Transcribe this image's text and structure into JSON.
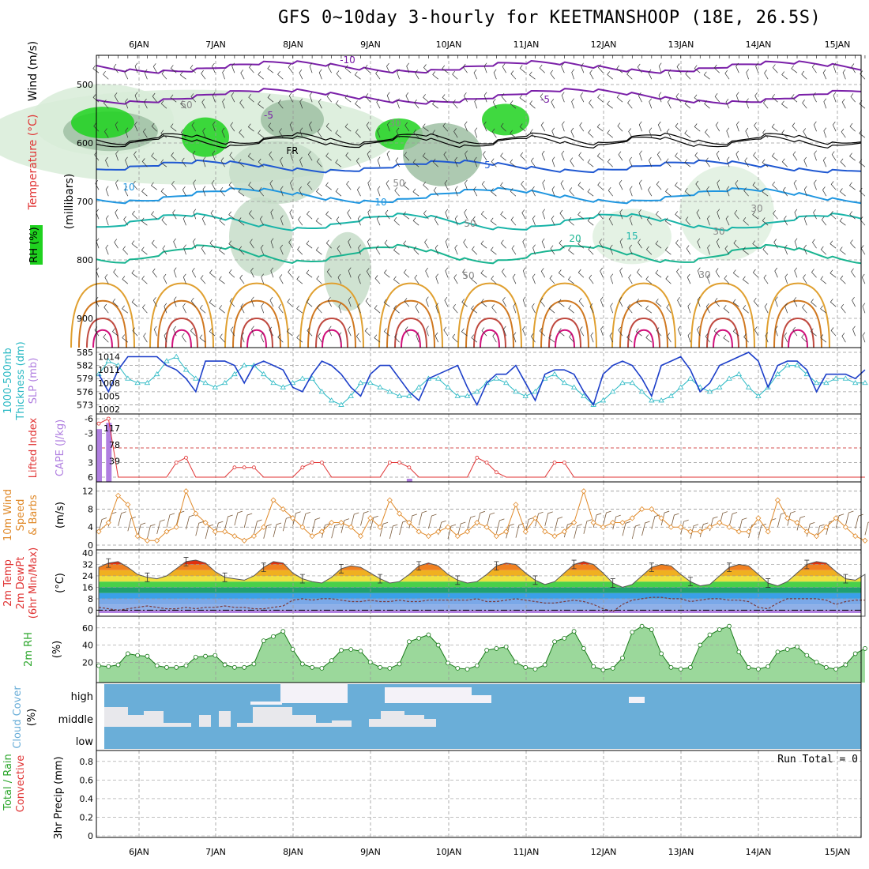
{
  "title": "GFS 0~10day 3-hourly for KEETMANSHOOP (18E, 26.5S)",
  "dates": [
    "6JAN",
    "7JAN",
    "8JAN",
    "9JAN",
    "10JAN",
    "11JAN",
    "12JAN",
    "13JAN",
    "14JAN",
    "15JAN"
  ],
  "colors": {
    "rh": "#1fd21f",
    "rh_dark": "#8fa894",
    "temp_cold": "#7a1fa8",
    "temp_mid": "#1f58d2",
    "temp_warm": "#18b4a8",
    "temp_hot": "#e09020",
    "slp": "#1d3fc9",
    "thick": "#2bb9c4",
    "li": "#e03333",
    "cape": "#b07fe0",
    "wind": "#e08a2a",
    "rh2m": "#2aa52a",
    "cloud": "#6aaed8"
  },
  "panels": {
    "upper": {
      "ylabels": [
        "Wind (m/s)",
        "Temperature (°C)",
        "RH (%)",
        "(millibars)"
      ],
      "yticks": [
        "500",
        "600",
        "700",
        "800",
        "900"
      ],
      "contour_labels": [
        "-10",
        "-5",
        "-5",
        "FR",
        "5",
        "10",
        "10",
        "15",
        "20",
        "50",
        "50",
        "50",
        "30",
        "30",
        "30",
        "50",
        "30"
      ]
    },
    "slp": {
      "ylabels": [
        "1000-500mb",
        "Thickness (dm)",
        "SLP (mb)"
      ],
      "yticks_left": [
        "585",
        "582",
        "579",
        "576",
        "573"
      ],
      "yticks_right": [
        "1014",
        "1011",
        "1008",
        "1005",
        "1002"
      ]
    },
    "li": {
      "ylabels": [
        "Lifted Index",
        "CAPE (J/kg)"
      ],
      "yticks_left": [
        "-6",
        "-3",
        "0",
        "3",
        "6"
      ],
      "yticks_right": [
        "117",
        "78",
        "39"
      ]
    },
    "wind": {
      "ylabels": [
        "10m Wind",
        "Speed",
        "& Barbs"
      ],
      "unit": "(m/s)",
      "yticks": [
        "12",
        "8",
        "4",
        "0"
      ]
    },
    "temp": {
      "ylabels": [
        "2m Temp",
        "2m DewPt",
        "(6hr Min/Max)"
      ],
      "unit": "(°C)",
      "yticks": [
        "40",
        "32",
        "24",
        "16",
        "8",
        "0"
      ]
    },
    "rh": {
      "ylabels": [
        "2m RH"
      ],
      "unit": "(%)",
      "yticks": [
        "60",
        "40",
        "20"
      ]
    },
    "cloud": {
      "ylabels": [
        "Cloud Cover"
      ],
      "unit": "(%)",
      "levels": [
        "high",
        "middle",
        "low"
      ]
    },
    "precip": {
      "ylabels": [
        "Total / Rain",
        "Convective"
      ],
      "ylabel2": "3hr Precip (mm)",
      "yticks": [
        "0.8",
        "0.6",
        "0.4",
        "0.2",
        "0"
      ],
      "run_total": "Run Total = 0"
    }
  },
  "chart_data": [
    {
      "type": "line",
      "name": "SLP",
      "ylabel": "SLP (mb)",
      "ylim": [
        1002,
        1015
      ],
      "x": [
        0,
        1,
        2,
        3,
        4,
        5,
        6,
        7,
        8,
        9,
        10,
        11,
        12,
        13,
        14,
        15,
        16,
        17,
        18,
        19,
        20,
        21,
        22,
        23,
        24,
        25,
        26,
        27,
        28,
        29,
        30,
        31,
        32,
        33,
        34,
        35,
        36,
        37,
        38,
        39,
        40,
        41,
        42,
        43,
        44,
        45,
        46,
        47,
        48,
        49,
        50,
        51,
        52,
        53,
        54,
        55,
        56,
        57,
        58,
        59,
        60,
        61,
        62,
        63,
        64,
        65,
        66,
        67,
        68,
        69,
        70,
        71,
        72,
        73,
        74,
        75,
        76,
        77,
        78,
        79
      ],
      "values": [
        1010,
        1006,
        1011,
        1014,
        1014,
        1014,
        1014,
        1012,
        1011,
        1009,
        1006,
        1013,
        1013,
        1013,
        1012,
        1008,
        1012,
        1013,
        1012,
        1011,
        1007,
        1006,
        1010,
        1013,
        1012,
        1010,
        1007,
        1005,
        1010,
        1012,
        1012,
        1009,
        1006,
        1004,
        1009,
        1010,
        1011,
        1012,
        1007,
        1003,
        1008,
        1010,
        1010,
        1012,
        1008,
        1004,
        1010,
        1011,
        1011,
        1010,
        1006,
        1003,
        1010,
        1012,
        1013,
        1012,
        1009,
        1005,
        1012,
        1013,
        1014,
        1011,
        1006,
        1008,
        1012,
        1013,
        1014,
        1015,
        1013,
        1007,
        1012,
        1013,
        1013,
        1011,
        1006,
        1010,
        1010,
        1010,
        1009,
        1011
      ]
    },
    {
      "type": "line",
      "name": "Thickness",
      "ylabel": "Thickness (dm)",
      "ylim": [
        572,
        585
      ],
      "x": [
        0,
        1,
        2,
        3,
        4,
        5,
        6,
        7,
        8,
        9,
        10,
        11,
        12,
        13,
        14,
        15,
        16,
        17,
        18,
        19,
        20,
        21,
        22,
        23,
        24,
        25,
        26,
        27,
        28,
        29,
        30,
        31,
        32,
        33,
        34,
        35,
        36,
        37,
        38,
        39,
        40,
        41,
        42,
        43,
        44,
        45,
        46,
        47,
        48,
        49,
        50,
        51,
        52,
        53,
        54,
        55,
        56,
        57,
        58,
        59,
        60,
        61,
        62,
        63,
        64,
        65,
        66,
        67,
        68,
        69,
        70,
        71,
        72,
        73,
        74,
        75,
        76,
        77,
        78,
        79
      ],
      "values": [
        580,
        583,
        582,
        579,
        578,
        578,
        580,
        583,
        584,
        581,
        579,
        578,
        577,
        578,
        580,
        582,
        582,
        580,
        578,
        577,
        578,
        579,
        579,
        576,
        574,
        573,
        575,
        578,
        578,
        577,
        576,
        575,
        575,
        577,
        579,
        579,
        577,
        575,
        575,
        576,
        578,
        579,
        578,
        576,
        575,
        576,
        579,
        580,
        578,
        577,
        575,
        573,
        574,
        576,
        578,
        578,
        576,
        574,
        574,
        575,
        577,
        579,
        577,
        576,
        577,
        579,
        580,
        577,
        575,
        577,
        580,
        582,
        582,
        580,
        578,
        578,
        579,
        579,
        578,
        578
      ]
    },
    {
      "type": "line",
      "name": "10m Wind Speed",
      "ylabel": "(m/s)",
      "ylim": [
        0,
        13
      ],
      "x": [
        0,
        1,
        2,
        3,
        4,
        5,
        6,
        7,
        8,
        9,
        10,
        11,
        12,
        13,
        14,
        15,
        16,
        17,
        18,
        19,
        20,
        21,
        22,
        23,
        24,
        25,
        26,
        27,
        28,
        29,
        30,
        31,
        32,
        33,
        34,
        35,
        36,
        37,
        38,
        39,
        40,
        41,
        42,
        43,
        44,
        45,
        46,
        47,
        48,
        49,
        50,
        51,
        52,
        53,
        54,
        55,
        56,
        57,
        58,
        59,
        60,
        61,
        62,
        63,
        64,
        65,
        66,
        67,
        68,
        69,
        70,
        71,
        72,
        73,
        74,
        75,
        76,
        77,
        78,
        79
      ],
      "values": [
        3,
        5,
        11,
        9,
        2,
        1,
        1,
        3,
        4,
        12,
        7,
        5,
        3,
        3,
        2,
        1,
        2,
        4,
        10,
        8,
        6,
        4,
        2,
        3,
        5,
        5,
        4,
        2,
        6,
        4,
        10,
        7,
        5,
        3,
        2,
        3,
        4,
        2,
        3,
        5,
        4,
        2,
        3,
        9,
        3,
        6,
        3,
        2,
        3,
        5,
        12,
        5,
        4,
        5,
        5,
        6,
        8,
        8,
        6,
        4,
        4,
        3,
        3,
        4,
        5,
        4,
        3,
        3,
        6,
        3,
        10,
        6,
        5,
        3,
        2,
        4,
        6,
        4,
        2,
        1
      ]
    },
    {
      "type": "area",
      "name": "2m Temp",
      "ylabel": "(°C)",
      "ylim": [
        0,
        40
      ],
      "x": [
        0,
        1,
        2,
        3,
        4,
        5,
        6,
        7,
        8,
        9,
        10,
        11,
        12,
        13,
        14,
        15,
        16,
        17,
        18,
        19,
        20,
        21,
        22,
        23,
        24,
        25,
        26,
        27,
        28,
        29,
        30,
        31,
        32,
        33,
        34,
        35,
        36,
        37,
        38,
        39,
        40,
        41,
        42,
        43,
        44,
        45,
        46,
        47,
        48,
        49,
        50,
        51,
        52,
        53,
        54,
        55,
        56,
        57,
        58,
        59,
        60,
        61,
        62,
        63,
        64,
        65,
        66,
        67,
        68,
        69,
        70,
        71,
        72,
        73,
        74,
        75,
        76,
        77,
        78,
        79
      ],
      "values": [
        30,
        33,
        34,
        30,
        25,
        23,
        22,
        24,
        29,
        34,
        35,
        33,
        27,
        23,
        22,
        21,
        24,
        30,
        34,
        33,
        26,
        22,
        20,
        19,
        23,
        29,
        31,
        30,
        26,
        22,
        19,
        20,
        25,
        31,
        33,
        31,
        25,
        21,
        19,
        20,
        25,
        31,
        33,
        32,
        26,
        21,
        18,
        20,
        26,
        32,
        34,
        32,
        26,
        19,
        16,
        18,
        24,
        30,
        32,
        31,
        25,
        20,
        17,
        18,
        24,
        30,
        32,
        31,
        25,
        19,
        17,
        20,
        26,
        32,
        34,
        33,
        27,
        22,
        21,
        25
      ]
    },
    {
      "type": "line",
      "name": "2m DewPt",
      "ylabel": "(°C)",
      "ylim": [
        -2,
        40
      ],
      "x": [
        0,
        1,
        2,
        3,
        4,
        5,
        6,
        7,
        8,
        9,
        10,
        11,
        12,
        13,
        14,
        15,
        16,
        17,
        18,
        19,
        20,
        21,
        22,
        23,
        24,
        25,
        26,
        27,
        28,
        29,
        30,
        31,
        32,
        33,
        34,
        35,
        36,
        37,
        38,
        39,
        40,
        41,
        42,
        43,
        44,
        45,
        46,
        47,
        48,
        49,
        50,
        51,
        52,
        53,
        54,
        55,
        56,
        57,
        58,
        59,
        60,
        61,
        62,
        63,
        64,
        65,
        66,
        67,
        68,
        69,
        70,
        71,
        72,
        73,
        74,
        75,
        76,
        77,
        78,
        79
      ],
      "values": [
        2,
        1,
        0,
        1,
        2,
        3,
        2,
        1,
        1,
        2,
        1,
        2,
        2,
        3,
        2,
        2,
        1,
        1,
        2,
        3,
        7,
        8,
        7,
        8,
        8,
        7,
        6,
        6,
        7,
        6,
        6,
        7,
        6,
        6,
        7,
        7,
        7,
        7,
        7,
        8,
        6,
        6,
        7,
        8,
        7,
        6,
        5,
        5,
        6,
        7,
        6,
        4,
        1,
        -1,
        4,
        7,
        8,
        9,
        9,
        8,
        8,
        6,
        7,
        8,
        8,
        7,
        7,
        6,
        2,
        1,
        5,
        8,
        8,
        8,
        8,
        7,
        4,
        6,
        7,
        7
      ]
    },
    {
      "type": "area",
      "name": "2m RH",
      "ylabel": "(%)",
      "ylim": [
        0,
        70
      ],
      "x": [
        0,
        1,
        2,
        3,
        4,
        5,
        6,
        7,
        8,
        9,
        10,
        11,
        12,
        13,
        14,
        15,
        16,
        17,
        18,
        19,
        20,
        21,
        22,
        23,
        24,
        25,
        26,
        27,
        28,
        29,
        30,
        31,
        32,
        33,
        34,
        35,
        36,
        37,
        38,
        39,
        40,
        41,
        42,
        43,
        44,
        45,
        46,
        47,
        48,
        49,
        50,
        51,
        52,
        53,
        54,
        55,
        56,
        57,
        58,
        59,
        60,
        61,
        62,
        63,
        64,
        65,
        66,
        67,
        68,
        69,
        70,
        71,
        72,
        73,
        74,
        75,
        76,
        77,
        78,
        79
      ],
      "values": [
        16,
        15,
        17,
        30,
        28,
        27,
        16,
        14,
        14,
        16,
        26,
        27,
        28,
        17,
        14,
        14,
        18,
        45,
        50,
        56,
        35,
        18,
        14,
        13,
        22,
        34,
        35,
        33,
        20,
        14,
        13,
        18,
        44,
        48,
        52,
        40,
        19,
        13,
        12,
        16,
        34,
        36,
        38,
        20,
        14,
        12,
        17,
        44,
        48,
        56,
        36,
        15,
        11,
        13,
        25,
        55,
        62,
        58,
        30,
        14,
        12,
        14,
        40,
        52,
        58,
        62,
        32,
        14,
        12,
        15,
        32,
        35,
        38,
        28,
        20,
        14,
        12,
        17,
        30,
        36
      ]
    },
    {
      "type": "bar",
      "name": "CAPE",
      "ylabel": "CAPE (J/kg)",
      "ylim": [
        0,
        140
      ],
      "categories": [
        "6JAN 00",
        "6JAN 03"
      ],
      "values": [
        115,
        130
      ]
    },
    {
      "type": "line",
      "name": "Lifted Index",
      "ylabel": "Lifted Index",
      "ylim": [
        -6,
        6
      ],
      "x": [
        0,
        1,
        2,
        3,
        4,
        5,
        6,
        7,
        8,
        9,
        10,
        11,
        12,
        13,
        14,
        15,
        16,
        17,
        18,
        19,
        20,
        21,
        22,
        23,
        24,
        25,
        26,
        27,
        28,
        29,
        30,
        31,
        32,
        33,
        34,
        35,
        36,
        37,
        38,
        39,
        40,
        41,
        42,
        43,
        44,
        45,
        46,
        47,
        48,
        49,
        50,
        51,
        52,
        53,
        54,
        55,
        56,
        57,
        58,
        59,
        60,
        61,
        62,
        63,
        64,
        65,
        66,
        67,
        68,
        69,
        70,
        71,
        72,
        73,
        74,
        75,
        76,
        77,
        78,
        79
      ],
      "values": [
        -5,
        -6,
        6,
        6,
        6,
        6,
        6,
        6,
        3,
        2,
        6,
        6,
        6,
        6,
        4,
        4,
        4,
        6,
        6,
        6,
        6,
        4,
        3,
        3,
        6,
        6,
        6,
        6,
        6,
        6,
        3,
        3,
        4,
        6,
        6,
        6,
        6,
        6,
        6,
        2,
        3,
        5,
        6,
        6,
        6,
        6,
        6,
        3,
        3,
        6,
        6,
        6,
        6,
        6,
        6,
        6,
        6,
        6,
        6,
        6,
        6,
        6,
        6,
        6,
        6,
        6,
        6,
        6,
        6,
        6,
        6,
        6,
        6,
        6,
        6,
        6,
        6,
        6,
        6,
        6
      ]
    },
    {
      "type": "table",
      "name": "Cloud Cover",
      "categories": [
        "high",
        "middle",
        "low"
      ]
    },
    {
      "type": "bar",
      "name": "3hr Precip",
      "ylabel": "3hr Precip (mm)",
      "ylim": [
        0,
        0.9
      ],
      "values": [
        0
      ]
    }
  ]
}
